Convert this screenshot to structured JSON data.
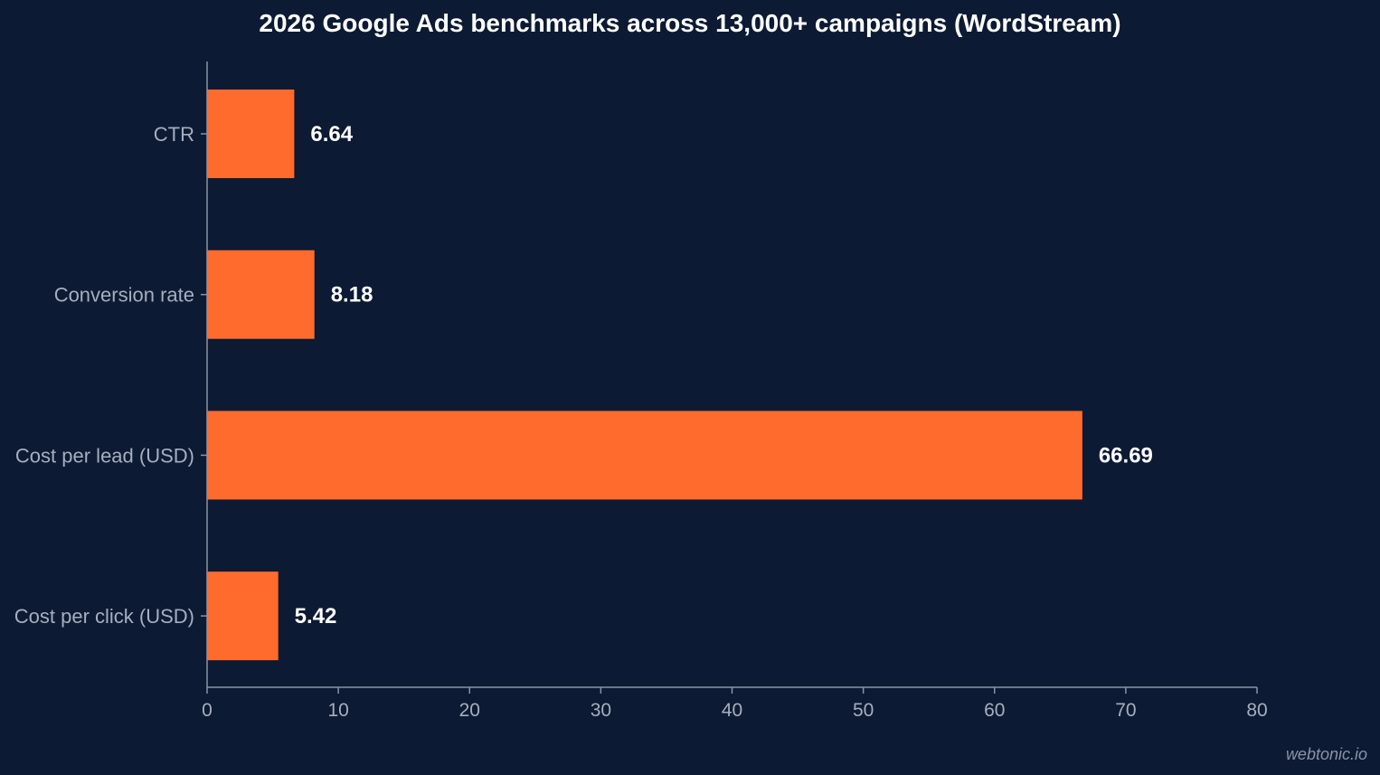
{
  "chart_data": {
    "type": "bar",
    "orientation": "horizontal",
    "title": "2026 Google Ads benchmarks across 13,000+ campaigns (WordStream)",
    "categories": [
      "CTR",
      "Conversion rate",
      "Cost per lead (USD)",
      "Cost per click (USD)"
    ],
    "values": [
      6.64,
      8.18,
      66.69,
      5.42
    ],
    "value_labels": [
      "6.64",
      "8.18",
      "66.69",
      "5.42"
    ],
    "xlim": [
      0,
      80
    ],
    "x_ticks": [
      0,
      10,
      20,
      30,
      40,
      50,
      60,
      70,
      80
    ],
    "x_tick_labels": [
      "0",
      "10",
      "20",
      "30",
      "40",
      "50",
      "60",
      "70",
      "80"
    ],
    "xlabel": "",
    "ylabel": "",
    "grid": false,
    "bar_color": "#ff6b2c",
    "background_color": "#0c1a33",
    "axis_color": "#8a93a6"
  },
  "watermark": "webtonic.io"
}
